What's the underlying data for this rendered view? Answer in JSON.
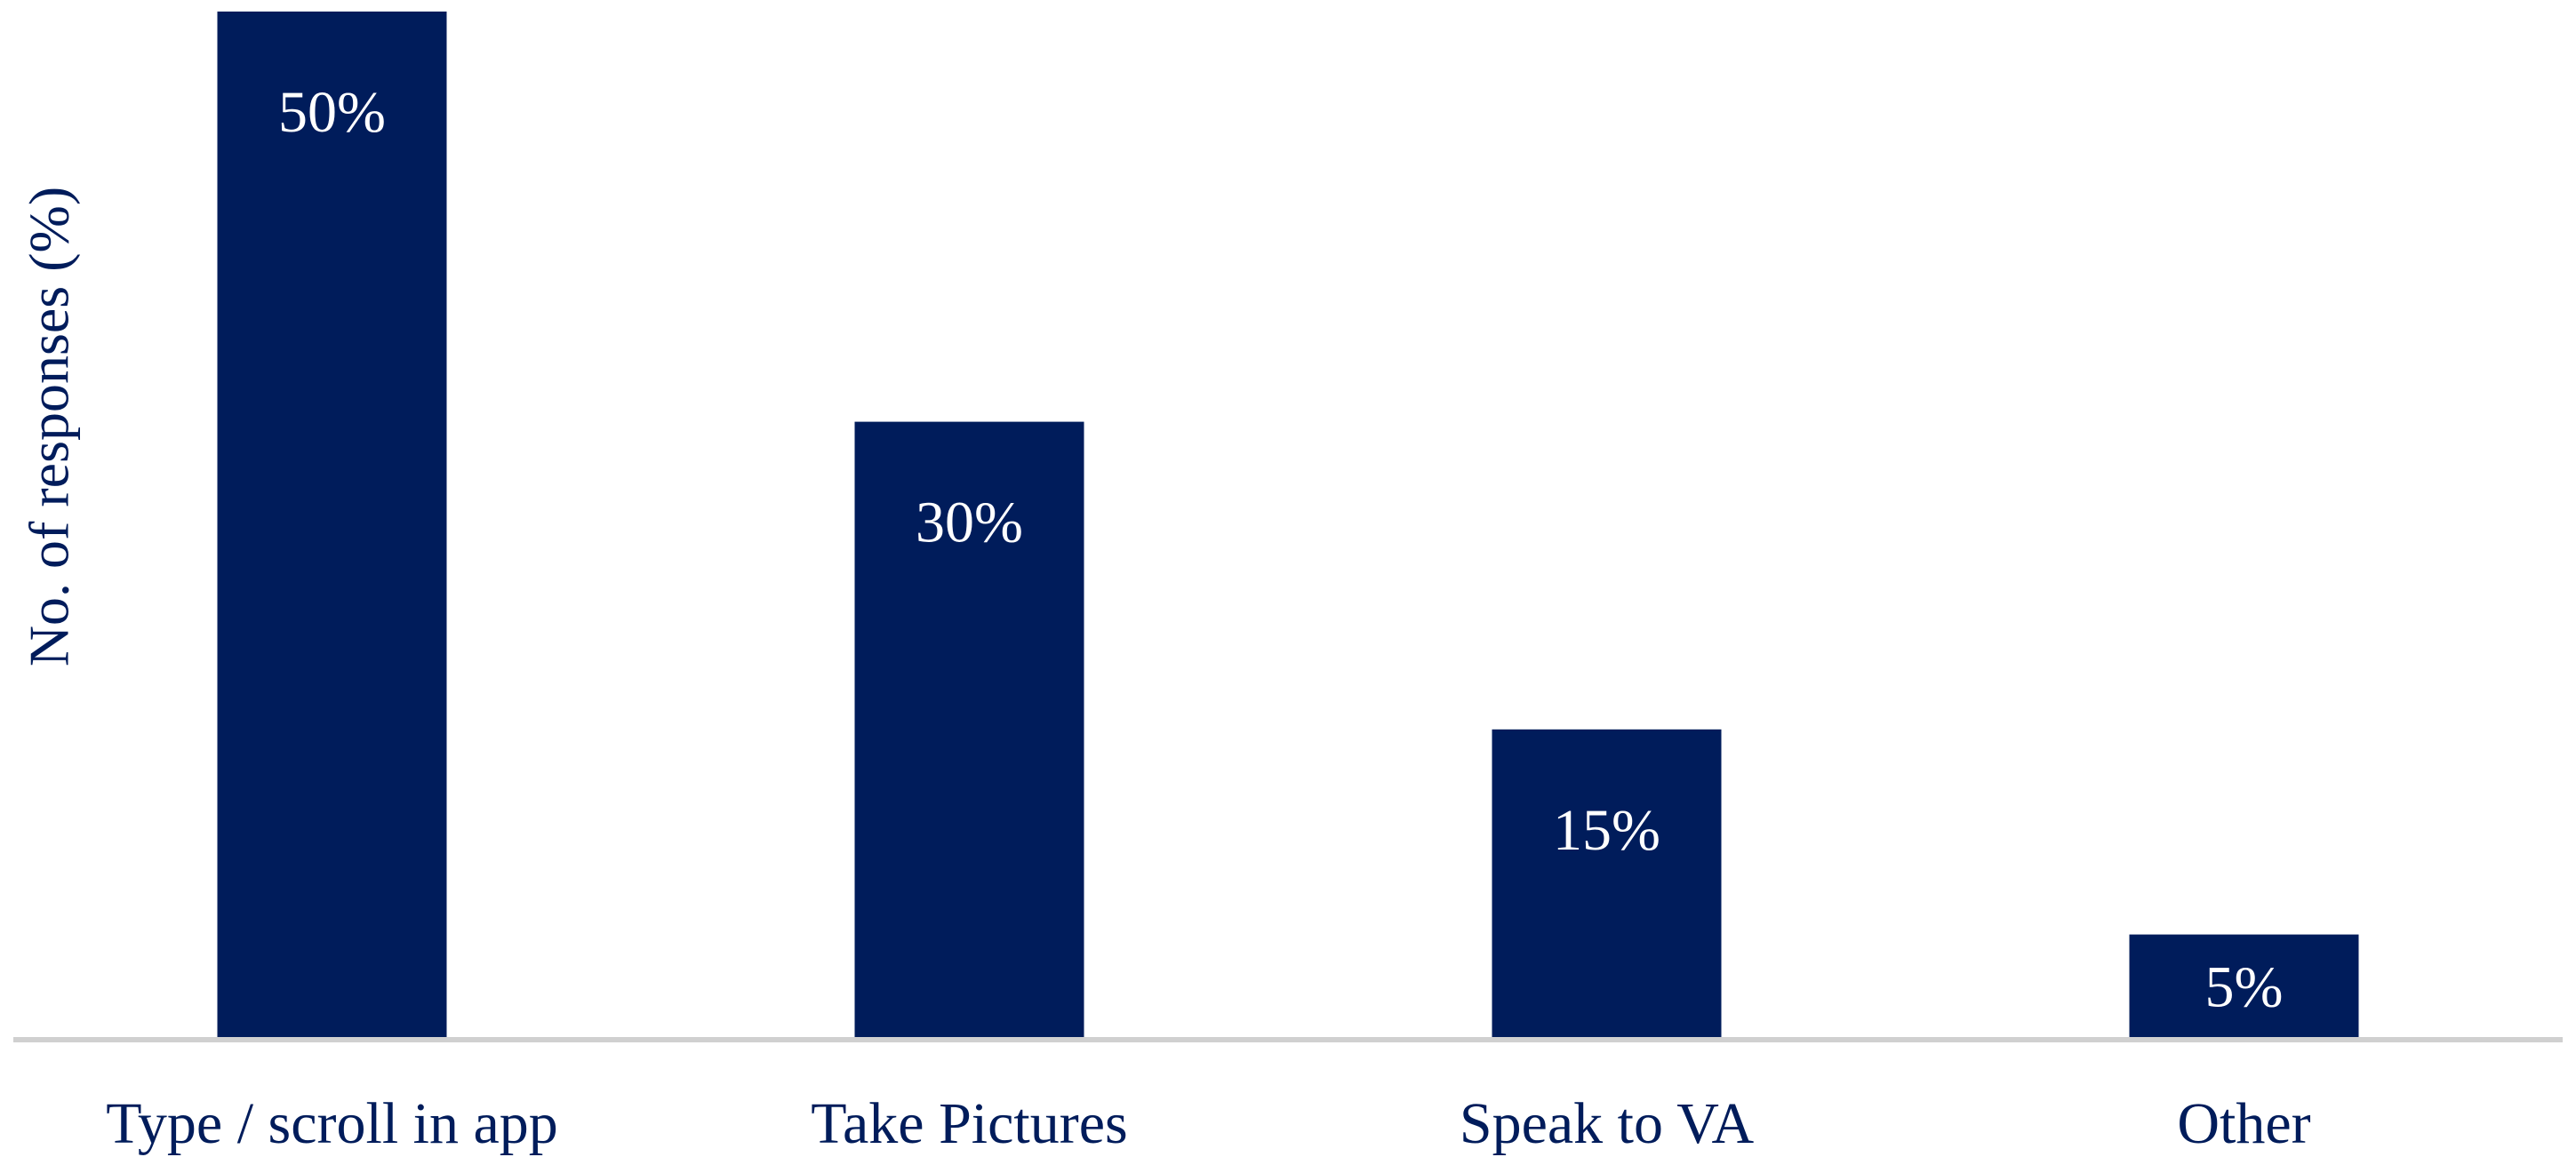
{
  "chart_data": {
    "type": "bar",
    "y_axis_label": "No. of responses (%)",
    "categories": [
      "Type / scroll in app",
      "Take Pictures",
      "Speak to VA",
      "Other"
    ],
    "values": [
      50,
      30,
      15,
      5
    ],
    "value_labels": [
      "50%",
      "30%",
      "15%",
      "5%"
    ],
    "color": "#001c5b",
    "ylim": [
      0,
      50
    ]
  }
}
